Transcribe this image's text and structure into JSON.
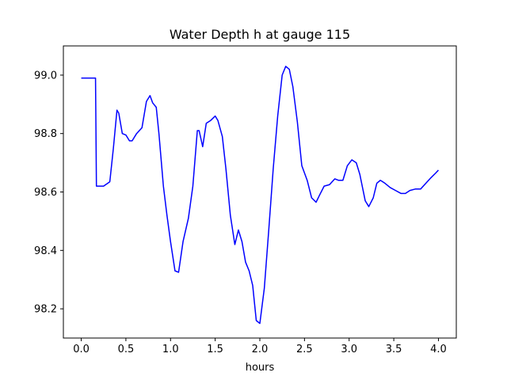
{
  "chart_data": {
    "type": "line",
    "title": "Water Depth h at gauge 115",
    "xlabel": "hours",
    "ylabel": "",
    "xlim": [
      -0.2,
      4.2
    ],
    "ylim": [
      98.1,
      99.1
    ],
    "xticks": [
      0.0,
      0.5,
      1.0,
      1.5,
      2.0,
      2.5,
      3.0,
      3.5,
      4.0
    ],
    "xtick_labels": [
      "0.0",
      "0.5",
      "1.0",
      "1.5",
      "2.0",
      "2.5",
      "3.0",
      "3.5",
      "4.0"
    ],
    "yticks": [
      98.2,
      98.4,
      98.6,
      98.8,
      99.0
    ],
    "ytick_labels": [
      "98.2",
      "98.4",
      "98.6",
      "98.8",
      "99.0"
    ],
    "grid": false,
    "series": [
      {
        "color": "#0000ff",
        "x": [
          0.0,
          0.15,
          0.16,
          0.17,
          0.25,
          0.32,
          0.36,
          0.4,
          0.42,
          0.46,
          0.5,
          0.54,
          0.57,
          0.62,
          0.68,
          0.73,
          0.77,
          0.8,
          0.84,
          0.87,
          0.92,
          0.96,
          1.0,
          1.05,
          1.09,
          1.14,
          1.2,
          1.25,
          1.3,
          1.32,
          1.36,
          1.4,
          1.45,
          1.5,
          1.53,
          1.58,
          1.62,
          1.67,
          1.72,
          1.76,
          1.8,
          1.84,
          1.88,
          1.92,
          1.96,
          2.0,
          2.05,
          2.1,
          2.15,
          2.2,
          2.25,
          2.29,
          2.33,
          2.37,
          2.42,
          2.47,
          2.53,
          2.58,
          2.63,
          2.67,
          2.72,
          2.78,
          2.84,
          2.88,
          2.93,
          2.98,
          3.03,
          3.08,
          3.12,
          3.18,
          3.22,
          3.27,
          3.31,
          3.35,
          3.4,
          3.46,
          3.52,
          3.58,
          3.63,
          3.68,
          3.74,
          3.8,
          3.86,
          3.92,
          3.97,
          4.0
        ],
        "y": [
          98.99,
          98.99,
          98.99,
          98.62,
          98.62,
          98.635,
          98.75,
          98.88,
          98.87,
          98.8,
          98.795,
          98.775,
          98.775,
          98.8,
          98.82,
          98.91,
          98.93,
          98.905,
          98.89,
          98.8,
          98.62,
          98.52,
          98.43,
          98.33,
          98.325,
          98.43,
          98.51,
          98.62,
          98.81,
          98.81,
          98.755,
          98.835,
          98.845,
          98.86,
          98.845,
          98.79,
          98.68,
          98.52,
          98.42,
          98.47,
          98.43,
          98.36,
          98.33,
          98.28,
          98.16,
          98.15,
          98.27,
          98.47,
          98.68,
          98.86,
          99.0,
          99.03,
          99.02,
          98.96,
          98.84,
          98.69,
          98.64,
          98.58,
          98.565,
          98.59,
          98.62,
          98.625,
          98.645,
          98.64,
          98.64,
          98.69,
          98.71,
          98.7,
          98.66,
          98.57,
          98.55,
          98.58,
          98.63,
          98.64,
          98.63,
          98.615,
          98.605,
          98.595,
          98.595,
          98.605,
          98.61,
          98.61,
          98.63,
          98.65,
          98.665,
          98.675
        ]
      }
    ]
  }
}
